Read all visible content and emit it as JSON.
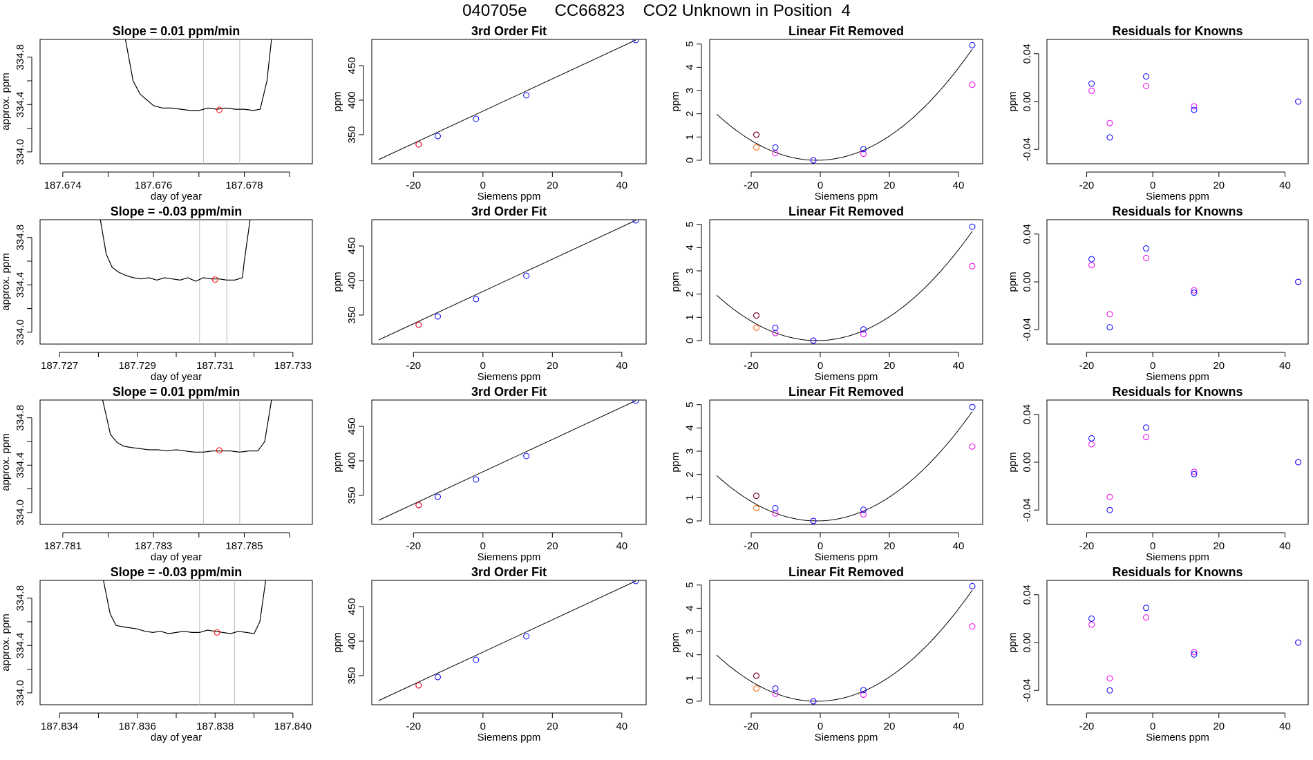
{
  "figure": {
    "title": "040705e      CC66823    CO2 Unknown in Position  4"
  },
  "chart_data": [
    {
      "type": "line",
      "row": 1,
      "col": 1,
      "title": "Slope =  0.01  ppm/min",
      "xlabel": "day of year",
      "ylabel": "approx. ppm",
      "xlim": [
        187.6735,
        187.6795
      ],
      "ylim": [
        333.9,
        334.95
      ],
      "xticks": [
        187.674,
        187.675,
        187.676,
        187.677,
        187.678,
        187.679
      ],
      "xticklabels": [
        "187.674",
        "",
        "187.676",
        "",
        "187.678",
        ""
      ],
      "yticks": [
        334.0,
        334.2,
        334.4,
        334.6,
        334.8
      ],
      "yticklabels": [
        "334.0",
        "",
        "334.4",
        "",
        "334.8"
      ],
      "vlines": [
        187.6771,
        187.6779
      ],
      "trace": {
        "x": [
          187.67538,
          187.67555,
          187.6757,
          187.67585,
          187.676,
          187.6762,
          187.6764,
          187.6766,
          187.6768,
          187.677,
          187.6772,
          187.6774,
          187.6776,
          187.6778,
          187.678,
          187.6782,
          187.67835,
          187.6785,
          187.6786
        ],
        "y": [
          334.95,
          334.6,
          334.49,
          334.44,
          334.39,
          334.37,
          334.37,
          334.36,
          334.35,
          334.35,
          334.37,
          334.36,
          334.37,
          334.36,
          334.36,
          334.35,
          334.36,
          334.6,
          334.95
        ]
      },
      "marker": {
        "x": 187.67745,
        "y": 334.355
      }
    },
    {
      "type": "scatter",
      "row": 1,
      "col": 2,
      "title": "3rd Order Fit",
      "xlabel": "Siemens ppm",
      "ylabel": "ppm",
      "xlim": [
        -32,
        47
      ],
      "ylim": [
        308,
        488
      ],
      "xticks": [
        -20,
        0,
        20,
        40
      ],
      "yticks": [
        350,
        400,
        450
      ],
      "line": {
        "x": [
          -30,
          44
        ],
        "y": [
          314,
          487
        ]
      },
      "points_blue": {
        "x": [
          -18.5,
          -13,
          -2,
          12.5,
          44
        ],
        "y": [
          336,
          348,
          373,
          407,
          487
        ]
      },
      "points_red": {
        "x": [
          -18.5
        ],
        "y": [
          336
        ]
      }
    },
    {
      "type": "scatter",
      "row": 1,
      "col": 3,
      "title": "Linear Fit Removed",
      "xlabel": "Siemens ppm",
      "ylabel": "ppm",
      "xlim": [
        -32,
        47
      ],
      "ylim": [
        -0.15,
        5.2
      ],
      "xticks": [
        -20,
        0,
        20,
        40
      ],
      "yticks": [
        0,
        1,
        2,
        3,
        4,
        5
      ],
      "curve": {
        "a": 0.002363,
        "h": -1,
        "k": 0,
        "x0": -30,
        "x1": 44
      },
      "points_blue": {
        "x": [
          -18.5,
          -13,
          -2,
          12.5,
          44
        ],
        "y": [
          1.1,
          0.55,
          0,
          0.48,
          4.95
        ]
      },
      "points_magenta": {
        "x": [
          -13,
          -2,
          12.5,
          44
        ],
        "y": [
          0.3,
          0,
          0.28,
          3.25
        ]
      },
      "points_orange": {
        "x": [
          -18.5
        ],
        "y": [
          0.55
        ]
      },
      "points_darkred": {
        "x": [
          -18.5
        ],
        "y": [
          1.1
        ]
      }
    },
    {
      "type": "scatter",
      "row": 1,
      "col": 4,
      "title": "Residuals for Knowns",
      "xlabel": "Siemens ppm",
      "ylabel": "ppm",
      "xlim": [
        -32,
        47
      ],
      "ylim": [
        -0.052,
        0.052
      ],
      "xticks": [
        -20,
        0,
        20,
        40
      ],
      "yticks": [
        -0.04,
        0.0,
        0.04
      ],
      "yticklabels": [
        "-0.04",
        "0.00",
        "0.04"
      ],
      "points_blue": {
        "x": [
          -18.5,
          -13,
          -2,
          12.5,
          44
        ],
        "y": [
          0.015,
          -0.03,
          0.021,
          -0.007,
          0.0
        ]
      },
      "points_magenta": {
        "x": [
          -18.5,
          -13,
          -2,
          12.5,
          44
        ],
        "y": [
          0.009,
          -0.018,
          0.013,
          -0.004,
          0.0
        ]
      }
    },
    {
      "type": "line",
      "row": 2,
      "col": 1,
      "title": "Slope =  -0.03  ppm/min",
      "xlabel": "day of year",
      "ylabel": "approx. ppm",
      "xlim": [
        187.7265,
        187.7335
      ],
      "ylim": [
        333.9,
        334.95
      ],
      "xticks": [
        187.727,
        187.728,
        187.729,
        187.73,
        187.731,
        187.732,
        187.733
      ],
      "xticklabels": [
        "187.727",
        "",
        "187.729",
        "",
        "187.731",
        "",
        "187.733"
      ],
      "yticks": [
        334.0,
        334.2,
        334.4,
        334.6,
        334.8
      ],
      "yticklabels": [
        "334.0",
        "",
        "334.4",
        "",
        "334.8"
      ],
      "vlines": [
        187.7306,
        187.7313
      ],
      "trace": {
        "x": [
          187.72805,
          187.7282,
          187.72835,
          187.7285,
          187.7287,
          187.7289,
          187.7291,
          187.7293,
          187.7295,
          187.7297,
          187.7299,
          187.7301,
          187.7303,
          187.7305,
          187.7307,
          187.7309,
          187.7311,
          187.7313,
          187.7315,
          187.7317,
          187.73175,
          187.7319
        ],
        "y": [
          334.95,
          334.66,
          334.55,
          334.51,
          334.48,
          334.46,
          334.45,
          334.46,
          334.44,
          334.46,
          334.45,
          334.44,
          334.46,
          334.43,
          334.46,
          334.45,
          334.45,
          334.44,
          334.44,
          334.46,
          334.6,
          334.95
        ]
      },
      "marker": {
        "x": 187.731,
        "y": 334.445
      }
    },
    {
      "type": "scatter",
      "row": 2,
      "col": 2,
      "title": "3rd Order Fit",
      "xlabel": "Siemens ppm",
      "ylabel": "ppm",
      "xlim": [
        -32,
        47
      ],
      "ylim": [
        308,
        488
      ],
      "xticks": [
        -20,
        0,
        20,
        40
      ],
      "yticks": [
        350,
        400,
        450
      ],
      "line": {
        "x": [
          -30,
          44
        ],
        "y": [
          314,
          487
        ]
      },
      "points_blue": {
        "x": [
          -18.5,
          -13,
          -2,
          12.5,
          44
        ],
        "y": [
          336,
          348,
          373,
          407,
          487
        ]
      },
      "points_red": {
        "x": [
          -18.5
        ],
        "y": [
          336
        ]
      }
    },
    {
      "type": "scatter",
      "row": 2,
      "col": 3,
      "title": "Linear Fit Removed",
      "xlabel": "Siemens ppm",
      "ylabel": "ppm",
      "xlim": [
        -32,
        47
      ],
      "ylim": [
        -0.15,
        5.2
      ],
      "xticks": [
        -20,
        0,
        20,
        40
      ],
      "yticks": [
        0,
        1,
        2,
        3,
        4,
        5
      ],
      "curve": {
        "a": 0.002325,
        "h": -1,
        "k": 0,
        "x0": -30,
        "x1": 44
      },
      "points_blue": {
        "x": [
          -18.5,
          -13,
          -2,
          12.5,
          44
        ],
        "y": [
          1.08,
          0.55,
          0,
          0.48,
          4.9
        ]
      },
      "points_magenta": {
        "x": [
          -13,
          -2,
          12.5,
          44
        ],
        "y": [
          0.32,
          0,
          0.28,
          3.2
        ]
      },
      "points_orange": {
        "x": [
          -18.5
        ],
        "y": [
          0.55
        ]
      },
      "points_darkred": {
        "x": [
          -18.5
        ],
        "y": [
          1.08
        ]
      }
    },
    {
      "type": "scatter",
      "row": 2,
      "col": 4,
      "title": "Residuals for Knowns",
      "xlabel": "Siemens ppm",
      "ylabel": "ppm",
      "xlim": [
        -32,
        47
      ],
      "ylim": [
        -0.052,
        0.052
      ],
      "xticks": [
        -20,
        0,
        20,
        40
      ],
      "yticks": [
        -0.04,
        0.0,
        0.04
      ],
      "yticklabels": [
        "-0.04",
        "0.00",
        "0.04"
      ],
      "points_blue": {
        "x": [
          -18.5,
          -13,
          -2,
          12.5,
          44
        ],
        "y": [
          0.019,
          -0.038,
          0.028,
          -0.009,
          0.0
        ]
      },
      "points_magenta": {
        "x": [
          -18.5,
          -13,
          -2,
          12.5,
          44
        ],
        "y": [
          0.014,
          -0.027,
          0.02,
          -0.007,
          0.0
        ]
      }
    },
    {
      "type": "line",
      "row": 3,
      "col": 1,
      "title": "Slope =  0.01  ppm/min",
      "xlabel": "day of year",
      "ylabel": "approx. ppm",
      "xlim": [
        187.7805,
        187.7865
      ],
      "ylim": [
        333.9,
        334.95
      ],
      "xticks": [
        187.781,
        187.782,
        187.783,
        187.784,
        187.785,
        187.786
      ],
      "xticklabels": [
        "187.781",
        "",
        "187.783",
        "",
        "187.785",
        ""
      ],
      "yticks": [
        334.0,
        334.2,
        334.4,
        334.6,
        334.8
      ],
      "yticklabels": [
        "334.0",
        "",
        "334.4",
        "",
        "334.8"
      ],
      "vlines": [
        187.7841,
        187.7849
      ],
      "trace": {
        "x": [
          187.78188,
          187.78205,
          187.7822,
          187.78235,
          187.7825,
          187.7827,
          187.7829,
          187.7831,
          187.7833,
          187.7835,
          187.7837,
          187.7839,
          187.7841,
          187.7843,
          187.7845,
          187.7847,
          187.7849,
          187.7851,
          187.7853,
          187.78545,
          187.7856
        ],
        "y": [
          334.95,
          334.66,
          334.59,
          334.56,
          334.55,
          334.54,
          334.53,
          334.53,
          334.52,
          334.53,
          334.52,
          334.51,
          334.51,
          334.52,
          334.52,
          334.52,
          334.51,
          334.52,
          334.52,
          334.6,
          334.95
        ]
      },
      "marker": {
        "x": 187.78445,
        "y": 334.525
      }
    },
    {
      "type": "scatter",
      "row": 3,
      "col": 2,
      "title": "3rd Order Fit",
      "xlabel": "Siemens ppm",
      "ylabel": "ppm",
      "xlim": [
        -32,
        47
      ],
      "ylim": [
        308,
        488
      ],
      "xticks": [
        -20,
        0,
        20,
        40
      ],
      "yticks": [
        350,
        400,
        450
      ],
      "line": {
        "x": [
          -30,
          44
        ],
        "y": [
          314,
          487
        ]
      },
      "points_blue": {
        "x": [
          -18.5,
          -13,
          -2,
          12.5,
          44
        ],
        "y": [
          336,
          348,
          373,
          407,
          487
        ]
      },
      "points_red": {
        "x": [
          -18.5
        ],
        "y": [
          336
        ]
      }
    },
    {
      "type": "scatter",
      "row": 3,
      "col": 3,
      "title": "Linear Fit Removed",
      "xlabel": "Siemens ppm",
      "ylabel": "ppm",
      "xlim": [
        -32,
        47
      ],
      "ylim": [
        -0.15,
        5.2
      ],
      "xticks": [
        -20,
        0,
        20,
        40
      ],
      "yticks": [
        0,
        1,
        2,
        3,
        4,
        5
      ],
      "curve": {
        "a": 0.002325,
        "h": -1,
        "k": 0,
        "x0": -30,
        "x1": 44
      },
      "points_blue": {
        "x": [
          -18.5,
          -13,
          -2,
          12.5,
          44
        ],
        "y": [
          1.08,
          0.55,
          0,
          0.48,
          4.9
        ]
      },
      "points_magenta": {
        "x": [
          -13,
          -2,
          12.5,
          44
        ],
        "y": [
          0.32,
          0,
          0.28,
          3.2
        ]
      },
      "points_orange": {
        "x": [
          -18.5
        ],
        "y": [
          0.55
        ]
      },
      "points_darkred": {
        "x": [
          -18.5
        ],
        "y": [
          1.08
        ]
      }
    },
    {
      "type": "scatter",
      "row": 3,
      "col": 4,
      "title": "Residuals for Knowns",
      "xlabel": "Siemens ppm",
      "ylabel": "ppm",
      "xlim": [
        -32,
        47
      ],
      "ylim": [
        -0.052,
        0.052
      ],
      "xticks": [
        -20,
        0,
        20,
        40
      ],
      "yticks": [
        -0.04,
        0.0,
        0.04
      ],
      "yticklabels": [
        "-0.04",
        "0.00",
        "0.04"
      ],
      "points_blue": {
        "x": [
          -18.5,
          -13,
          -2,
          12.5,
          44
        ],
        "y": [
          0.02,
          -0.04,
          0.029,
          -0.01,
          0.0
        ]
      },
      "points_magenta": {
        "x": [
          -18.5,
          -13,
          -2,
          12.5,
          44
        ],
        "y": [
          0.015,
          -0.029,
          0.021,
          -0.008,
          0.0
        ]
      }
    },
    {
      "type": "line",
      "row": 4,
      "col": 1,
      "title": "Slope =  -0.03  ppm/min",
      "xlabel": "day of year",
      "ylabel": "approx. ppm",
      "xlim": [
        187.8335,
        187.8405
      ],
      "ylim": [
        333.9,
        334.95
      ],
      "xticks": [
        187.834,
        187.835,
        187.836,
        187.837,
        187.838,
        187.839,
        187.84
      ],
      "xticklabels": [
        "187.834",
        "",
        "187.836",
        "",
        "187.838",
        "",
        "187.840"
      ],
      "yticks": [
        334.0,
        334.2,
        334.4,
        334.6,
        334.8
      ],
      "yticklabels": [
        "334.0",
        "",
        "334.4",
        "",
        "334.8"
      ],
      "vlines": [
        187.8376,
        187.8385
      ],
      "trace": {
        "x": [
          187.83513,
          187.8353,
          187.83545,
          187.8356,
          187.8358,
          187.836,
          187.8362,
          187.8364,
          187.8366,
          187.8368,
          187.837,
          187.8372,
          187.8374,
          187.8376,
          187.8378,
          187.838,
          187.8382,
          187.8384,
          187.8386,
          187.8388,
          187.839,
          187.83915,
          187.8393
        ],
        "y": [
          334.95,
          334.67,
          334.57,
          334.56,
          334.55,
          334.54,
          334.52,
          334.51,
          334.52,
          334.5,
          334.51,
          334.52,
          334.51,
          334.51,
          334.53,
          334.52,
          334.51,
          334.5,
          334.52,
          334.51,
          334.5,
          334.6,
          334.95
        ]
      },
      "marker": {
        "x": 187.83805,
        "y": 334.51
      }
    },
    {
      "type": "scatter",
      "row": 4,
      "col": 2,
      "title": "3rd Order Fit",
      "xlabel": "Siemens ppm",
      "ylabel": "ppm",
      "xlim": [
        -32,
        47
      ],
      "ylim": [
        308,
        488
      ],
      "xticks": [
        -20,
        0,
        20,
        40
      ],
      "yticks": [
        350,
        400,
        450
      ],
      "line": {
        "x": [
          -30,
          44
        ],
        "y": [
          314,
          487
        ]
      },
      "points_blue": {
        "x": [
          -18.5,
          -13,
          -2,
          12.5,
          44
        ],
        "y": [
          336,
          348,
          373,
          407,
          487
        ]
      },
      "points_red": {
        "x": [
          -18.5
        ],
        "y": [
          336
        ]
      }
    },
    {
      "type": "scatter",
      "row": 4,
      "col": 3,
      "title": "Linear Fit Removed",
      "xlabel": "Siemens ppm",
      "ylabel": "ppm",
      "xlim": [
        -32,
        47
      ],
      "ylim": [
        -0.15,
        5.2
      ],
      "xticks": [
        -20,
        0,
        20,
        40
      ],
      "yticks": [
        0,
        1,
        2,
        3,
        4,
        5
      ],
      "curve": {
        "a": 0.002363,
        "h": -1,
        "k": 0,
        "x0": -30,
        "x1": 44
      },
      "points_blue": {
        "x": [
          -18.5,
          -13,
          -2,
          12.5,
          44
        ],
        "y": [
          1.1,
          0.55,
          0,
          0.48,
          4.95
        ]
      },
      "points_magenta": {
        "x": [
          -13,
          -2,
          12.5,
          44
        ],
        "y": [
          0.32,
          0,
          0.28,
          3.22
        ]
      },
      "points_orange": {
        "x": [
          -18.5
        ],
        "y": [
          0.55
        ]
      },
      "points_darkred": {
        "x": [
          -18.5
        ],
        "y": [
          1.1
        ]
      }
    },
    {
      "type": "scatter",
      "row": 4,
      "col": 4,
      "title": "Residuals for Knowns",
      "xlabel": "Siemens ppm",
      "ylabel": "ppm",
      "xlim": [
        -32,
        47
      ],
      "ylim": [
        -0.052,
        0.052
      ],
      "xticks": [
        -20,
        0,
        20,
        40
      ],
      "yticks": [
        -0.04,
        0.0,
        0.04
      ],
      "yticklabels": [
        "-0.04",
        "0.00",
        "0.04"
      ],
      "points_blue": {
        "x": [
          -18.5,
          -13,
          -2,
          12.5,
          44
        ],
        "y": [
          0.02,
          -0.04,
          0.029,
          -0.01,
          0.0
        ]
      },
      "points_magenta": {
        "x": [
          -18.5,
          -13,
          -2,
          12.5,
          44
        ],
        "y": [
          0.015,
          -0.03,
          0.021,
          -0.008,
          0.0
        ]
      }
    }
  ],
  "colors": {
    "axis": "#000000",
    "trace": "#000000",
    "vline": "#bebebe",
    "point_blue": "#0000ff",
    "point_magenta": "#ee00ee",
    "point_red": "#ff0000",
    "point_orange": "#ff6600",
    "point_darkred": "#880000"
  }
}
